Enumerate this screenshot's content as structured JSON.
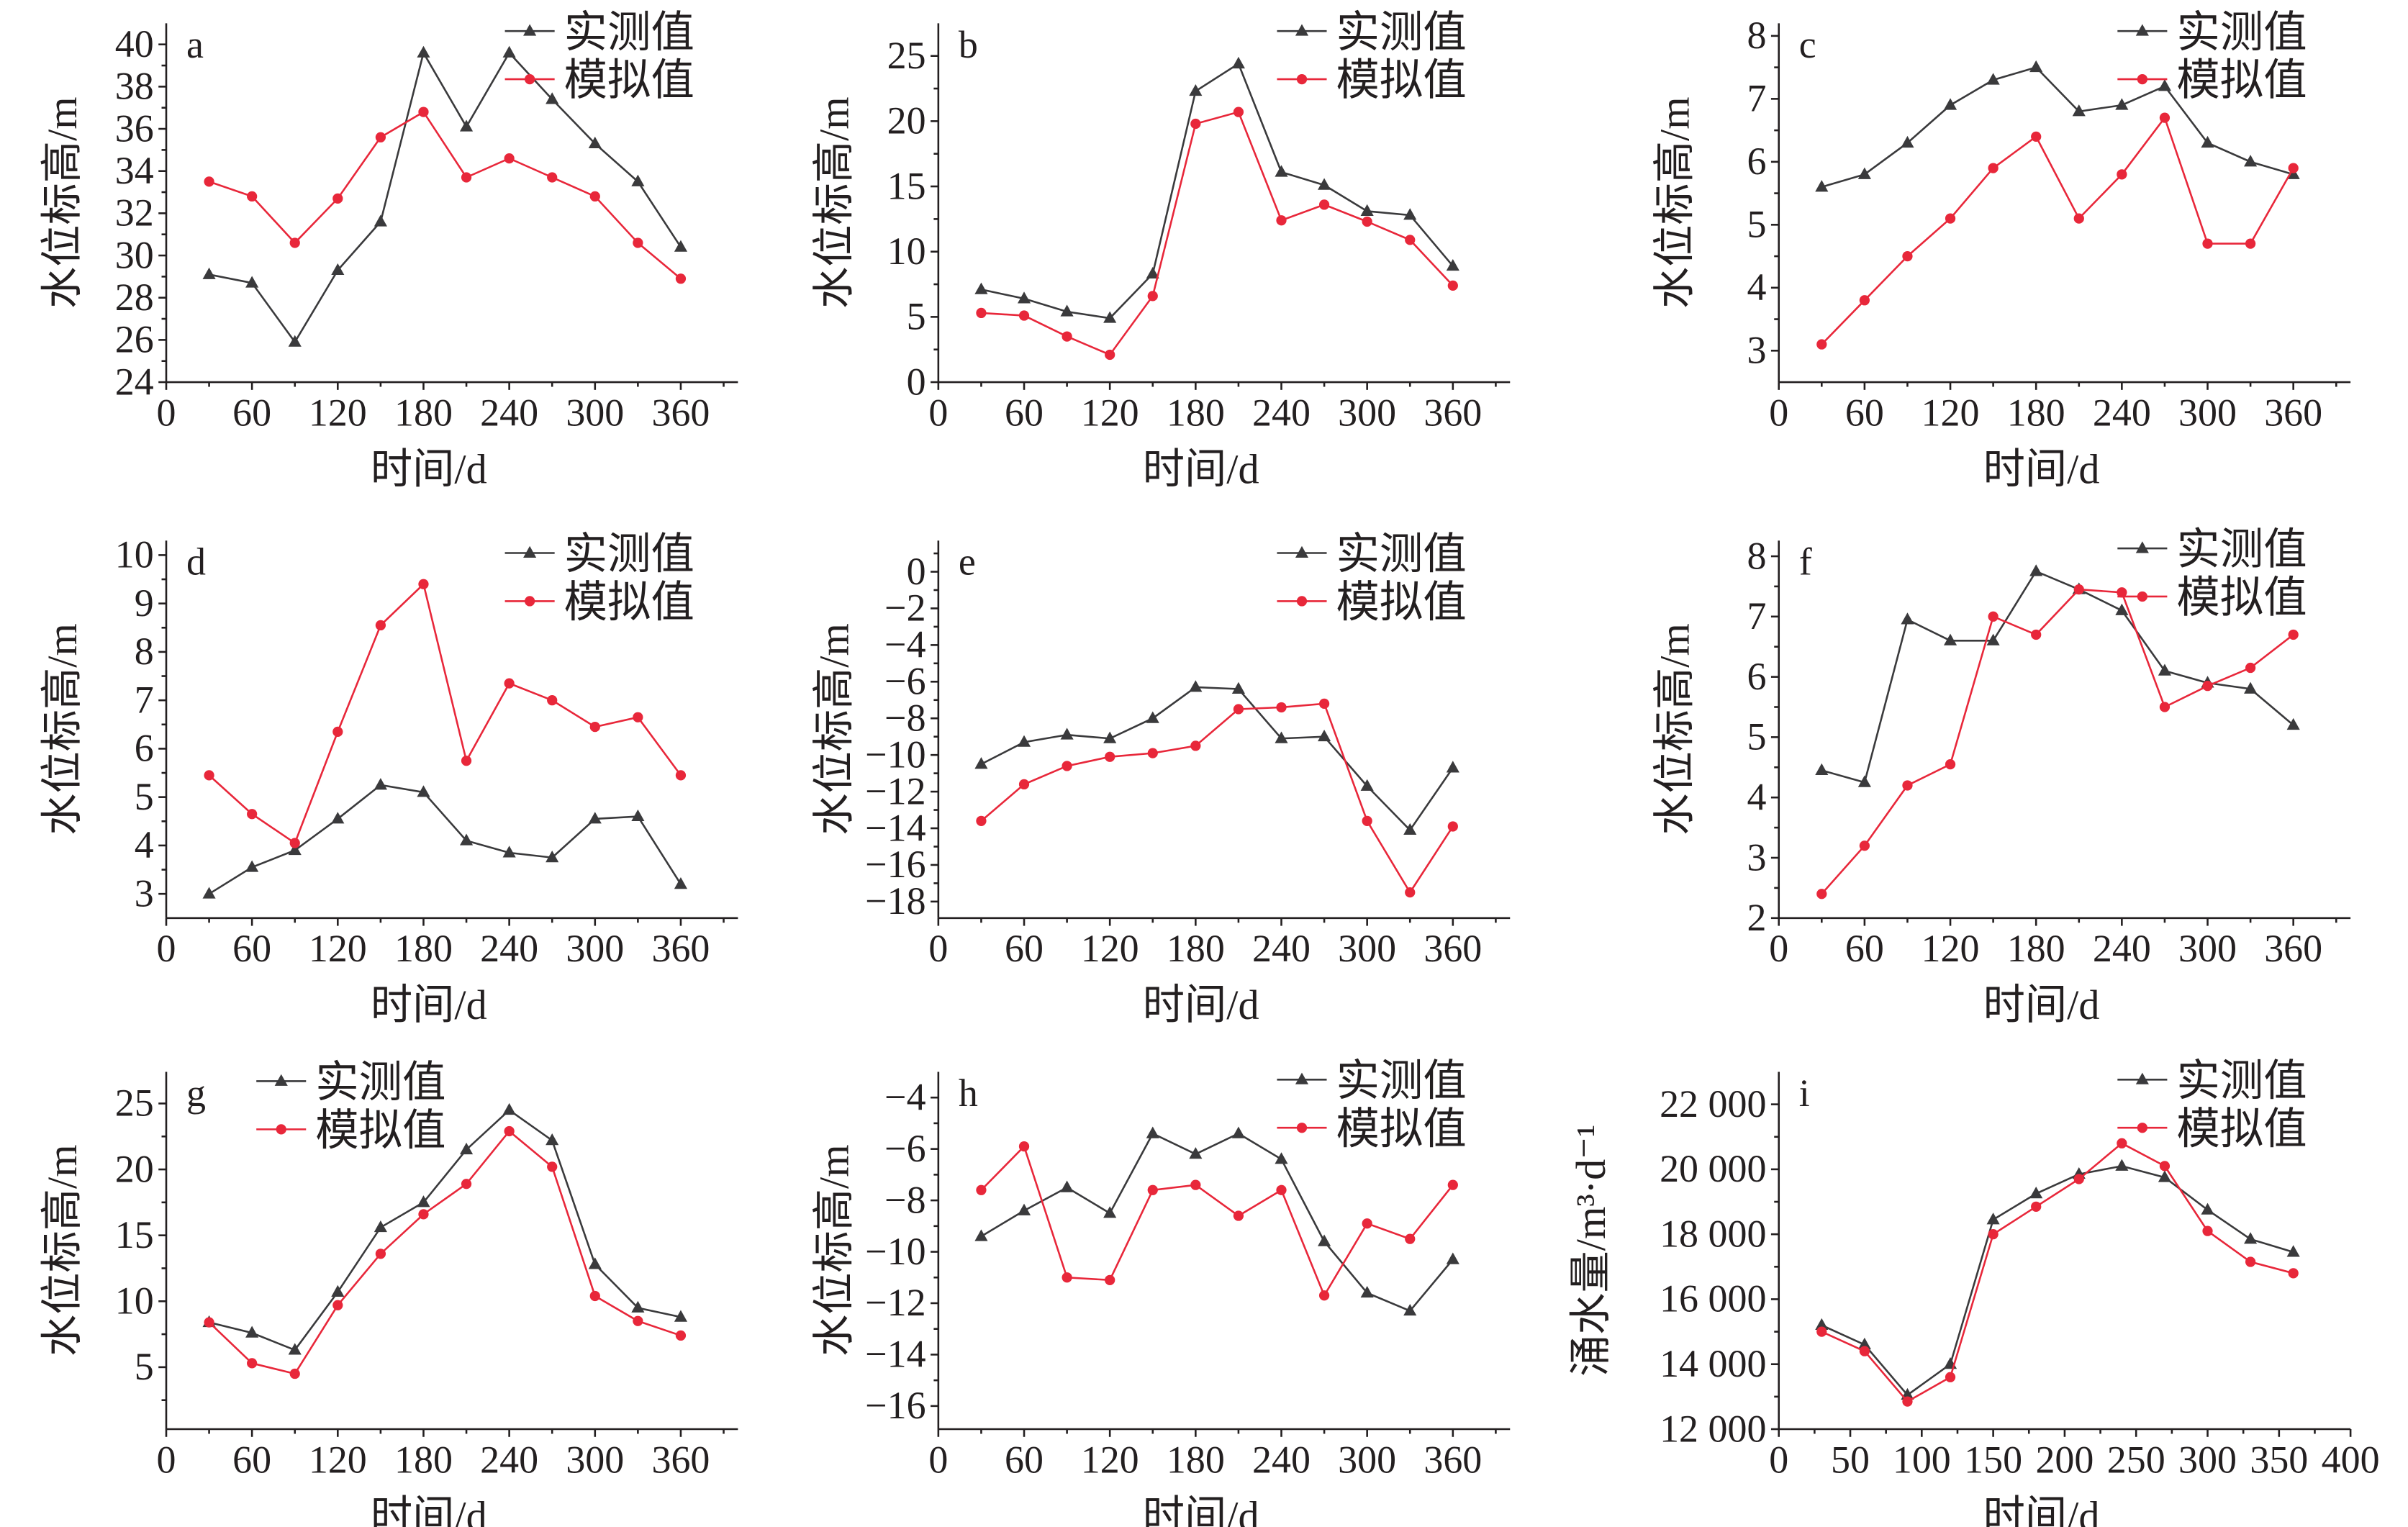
{
  "colors": {
    "measured": "#3a3a3c",
    "simulated": "#e8273a",
    "axis": "#231f20"
  },
  "chart_data": [
    {
      "type": "line",
      "panel_label": "a",
      "xlabel": "时间/d",
      "ylabel": "水位标高/m",
      "xlim": [
        0,
        400
      ],
      "ylim": [
        24,
        41
      ],
      "xticks": [
        0,
        60,
        120,
        180,
        240,
        300,
        360
      ],
      "yticks": [
        24,
        26,
        28,
        30,
        32,
        34,
        36,
        38,
        40
      ],
      "legend": "top-right",
      "x": [
        30,
        60,
        90,
        120,
        150,
        180,
        210,
        240,
        270,
        300,
        330,
        360
      ],
      "series": [
        {
          "name": "实测值",
          "marker": "triangle",
          "values": [
            29.1,
            28.7,
            25.9,
            29.3,
            31.6,
            39.6,
            36.1,
            39.6,
            37.4,
            35.3,
            33.5,
            30.4
          ]
        },
        {
          "name": "模拟值",
          "marker": "circle",
          "values": [
            33.5,
            32.8,
            30.6,
            32.7,
            35.6,
            36.8,
            33.7,
            34.6,
            33.7,
            32.8,
            30.6,
            28.9
          ]
        }
      ]
    },
    {
      "type": "line",
      "panel_label": "b",
      "xlabel": "时间/d",
      "ylabel": "水位标高/m",
      "xlim": [
        0,
        400
      ],
      "ylim": [
        0,
        27.5
      ],
      "xticks": [
        0,
        60,
        120,
        180,
        240,
        300,
        360
      ],
      "yticks": [
        0,
        5,
        10,
        15,
        20,
        25
      ],
      "legend": "top-right",
      "x": [
        30,
        60,
        90,
        120,
        150,
        180,
        210,
        240,
        270,
        300,
        330,
        360
      ],
      "series": [
        {
          "name": "实测值",
          "marker": "triangle",
          "values": [
            7.1,
            6.4,
            5.4,
            4.9,
            8.3,
            22.3,
            24.4,
            16.1,
            15.1,
            13.1,
            12.8,
            8.9
          ]
        },
        {
          "name": "模拟值",
          "marker": "circle",
          "values": [
            5.3,
            5.1,
            3.5,
            2.1,
            6.6,
            19.8,
            20.7,
            12.4,
            13.6,
            12.3,
            10.9,
            7.4
          ]
        }
      ]
    },
    {
      "type": "line",
      "panel_label": "c",
      "xlabel": "时间/d",
      "ylabel": "水位标高/m",
      "xlim": [
        0,
        400
      ],
      "ylim": [
        2.5,
        8.2
      ],
      "xticks": [
        0,
        60,
        120,
        180,
        240,
        300,
        360
      ],
      "yticks": [
        3,
        4,
        5,
        6,
        7,
        8
      ],
      "legend": "top-right",
      "x": [
        30,
        60,
        90,
        120,
        150,
        180,
        210,
        240,
        270,
        300,
        330,
        360
      ],
      "series": [
        {
          "name": "实测值",
          "marker": "triangle",
          "values": [
            5.6,
            5.8,
            6.3,
            6.9,
            7.3,
            7.5,
            6.8,
            6.9,
            7.2,
            6.3,
            6.0,
            5.8
          ]
        },
        {
          "name": "模拟值",
          "marker": "circle",
          "values": [
            3.1,
            3.8,
            4.5,
            5.1,
            5.9,
            6.4,
            5.1,
            5.8,
            6.7,
            4.7,
            4.7,
            5.9
          ]
        }
      ]
    },
    {
      "type": "line",
      "panel_label": "d",
      "xlabel": "时间/d",
      "ylabel": "水位标高/m",
      "xlim": [
        0,
        400
      ],
      "ylim": [
        2.5,
        10.3
      ],
      "xticks": [
        0,
        60,
        120,
        180,
        240,
        300,
        360
      ],
      "yticks": [
        3,
        4,
        5,
        6,
        7,
        8,
        9,
        10
      ],
      "legend": "top-right",
      "x": [
        30,
        60,
        90,
        120,
        150,
        180,
        210,
        240,
        270,
        300,
        330,
        360
      ],
      "series": [
        {
          "name": "实测值",
          "marker": "triangle",
          "values": [
            3.0,
            3.55,
            3.9,
            4.55,
            5.25,
            5.1,
            4.1,
            3.85,
            3.75,
            4.55,
            4.6,
            3.2
          ]
        },
        {
          "name": "模拟值",
          "marker": "circle",
          "values": [
            5.45,
            4.65,
            4.05,
            6.35,
            8.55,
            9.4,
            5.75,
            7.35,
            7.0,
            6.45,
            6.65,
            5.45
          ]
        }
      ]
    },
    {
      "type": "line",
      "panel_label": "e",
      "xlabel": "时间/d",
      "ylabel": "水位标高/m",
      "xlim": [
        0,
        400
      ],
      "ylim": [
        -18.9,
        1.7
      ],
      "xticks": [
        0,
        60,
        120,
        180,
        240,
        300,
        360
      ],
      "yticks": [
        0,
        -2,
        -4,
        -6,
        -8,
        -10,
        -12,
        -14,
        -16,
        -18
      ],
      "legend": "top-right",
      "x": [
        30,
        60,
        90,
        120,
        150,
        180,
        210,
        240,
        270,
        300,
        330,
        360
      ],
      "series": [
        {
          "name": "实测值",
          "marker": "triangle",
          "values": [
            -10.5,
            -9.3,
            -8.9,
            -9.1,
            -8.0,
            -6.3,
            -6.4,
            -9.1,
            -9.0,
            -11.7,
            -14.1,
            -10.7
          ]
        },
        {
          "name": "模拟值",
          "marker": "circle",
          "values": [
            -13.6,
            -11.6,
            -10.6,
            -10.1,
            -9.9,
            -9.5,
            -7.5,
            -7.4,
            -7.2,
            -13.6,
            -17.5,
            -13.9
          ]
        }
      ]
    },
    {
      "type": "line",
      "panel_label": "f",
      "xlabel": "时间/d",
      "ylabel": "水位标高/m",
      "xlim": [
        0,
        400
      ],
      "ylim": [
        2,
        8.26
      ],
      "xticks": [
        0,
        60,
        120,
        180,
        240,
        300,
        360
      ],
      "yticks": [
        2,
        3,
        4,
        5,
        6,
        7,
        8
      ],
      "legend": "top-right",
      "x": [
        30,
        60,
        90,
        120,
        150,
        180,
        210,
        240,
        270,
        300,
        330,
        360
      ],
      "series": [
        {
          "name": "实测值",
          "marker": "triangle",
          "values": [
            4.45,
            4.25,
            6.95,
            6.6,
            6.6,
            7.75,
            7.45,
            7.1,
            6.1,
            5.9,
            5.8,
            5.2
          ]
        },
        {
          "name": "模拟值",
          "marker": "circle",
          "values": [
            2.4,
            3.2,
            4.2,
            4.55,
            7.0,
            6.7,
            7.45,
            7.4,
            5.5,
            5.85,
            6.15,
            6.7
          ]
        }
      ]
    },
    {
      "type": "line",
      "panel_label": "g",
      "xlabel": "时间/d",
      "ylabel": "水位标高/m",
      "xlim": [
        0,
        400
      ],
      "ylim": [
        0.3,
        27.4
      ],
      "xticks": [
        0,
        60,
        120,
        180,
        240,
        300,
        360
      ],
      "yticks": [
        5,
        10,
        15,
        20,
        25
      ],
      "legend": "top-left",
      "x": [
        30,
        60,
        90,
        120,
        150,
        180,
        210,
        240,
        270,
        300,
        330,
        360
      ],
      "series": [
        {
          "name": "实测值",
          "marker": "triangle",
          "values": [
            8.4,
            7.6,
            6.3,
            10.7,
            15.6,
            17.5,
            21.5,
            24.5,
            22.2,
            12.8,
            9.5,
            8.8
          ]
        },
        {
          "name": "模拟值",
          "marker": "circle",
          "values": [
            8.4,
            5.3,
            4.5,
            9.7,
            13.6,
            16.6,
            18.9,
            22.9,
            20.2,
            10.4,
            8.5,
            7.4
          ]
        }
      ]
    },
    {
      "type": "line",
      "panel_label": "h",
      "xlabel": "时间/d",
      "ylabel": "水位标高/m",
      "xlim": [
        0,
        400
      ],
      "ylim": [
        -16.9,
        -3
      ],
      "xticks": [
        0,
        60,
        120,
        180,
        240,
        300,
        360
      ],
      "yticks": [
        -4,
        -6,
        -8,
        -10,
        -12,
        -14,
        -16
      ],
      "legend": "top-right",
      "x": [
        30,
        60,
        90,
        120,
        150,
        180,
        210,
        240,
        270,
        300,
        330,
        360
      ],
      "series": [
        {
          "name": "实测值",
          "marker": "triangle",
          "values": [
            -9.4,
            -8.4,
            -7.5,
            -8.5,
            -5.4,
            -6.2,
            -5.4,
            -6.4,
            -9.6,
            -11.6,
            -12.3,
            -10.3
          ]
        },
        {
          "name": "模拟值",
          "marker": "circle",
          "values": [
            -7.6,
            -5.9,
            -11.0,
            -11.1,
            -7.6,
            -7.4,
            -8.6,
            -7.6,
            -11.7,
            -8.9,
            -9.5,
            -7.4
          ]
        }
      ]
    },
    {
      "type": "line",
      "panel_label": "i",
      "xlabel": "时间/d",
      "ylabel": "涌水量/m³·d⁻¹",
      "xlim": [
        0,
        400
      ],
      "ylim": [
        12000,
        23000
      ],
      "xticks": [
        0,
        50,
        100,
        150,
        200,
        250,
        300,
        350,
        400
      ],
      "yticks": [
        12000,
        14000,
        16000,
        18000,
        20000,
        22000
      ],
      "ytick_labels": [
        "12 000",
        "14 000",
        "16 000",
        "18 000",
        "20 000",
        "22 000"
      ],
      "legend": "top-right",
      "x": [
        30,
        60,
        90,
        120,
        150,
        180,
        210,
        240,
        270,
        300,
        330,
        360
      ],
      "series": [
        {
          "name": "实测值",
          "marker": "triangle",
          "values": [
            15200,
            14600,
            13050,
            14000,
            18450,
            19250,
            19850,
            20100,
            19750,
            18750,
            17850,
            17450
          ]
        },
        {
          "name": "模拟值",
          "marker": "circle",
          "values": [
            15000,
            14400,
            12850,
            13600,
            18000,
            18850,
            19700,
            20800,
            20100,
            18100,
            17150,
            16800
          ]
        }
      ]
    }
  ]
}
